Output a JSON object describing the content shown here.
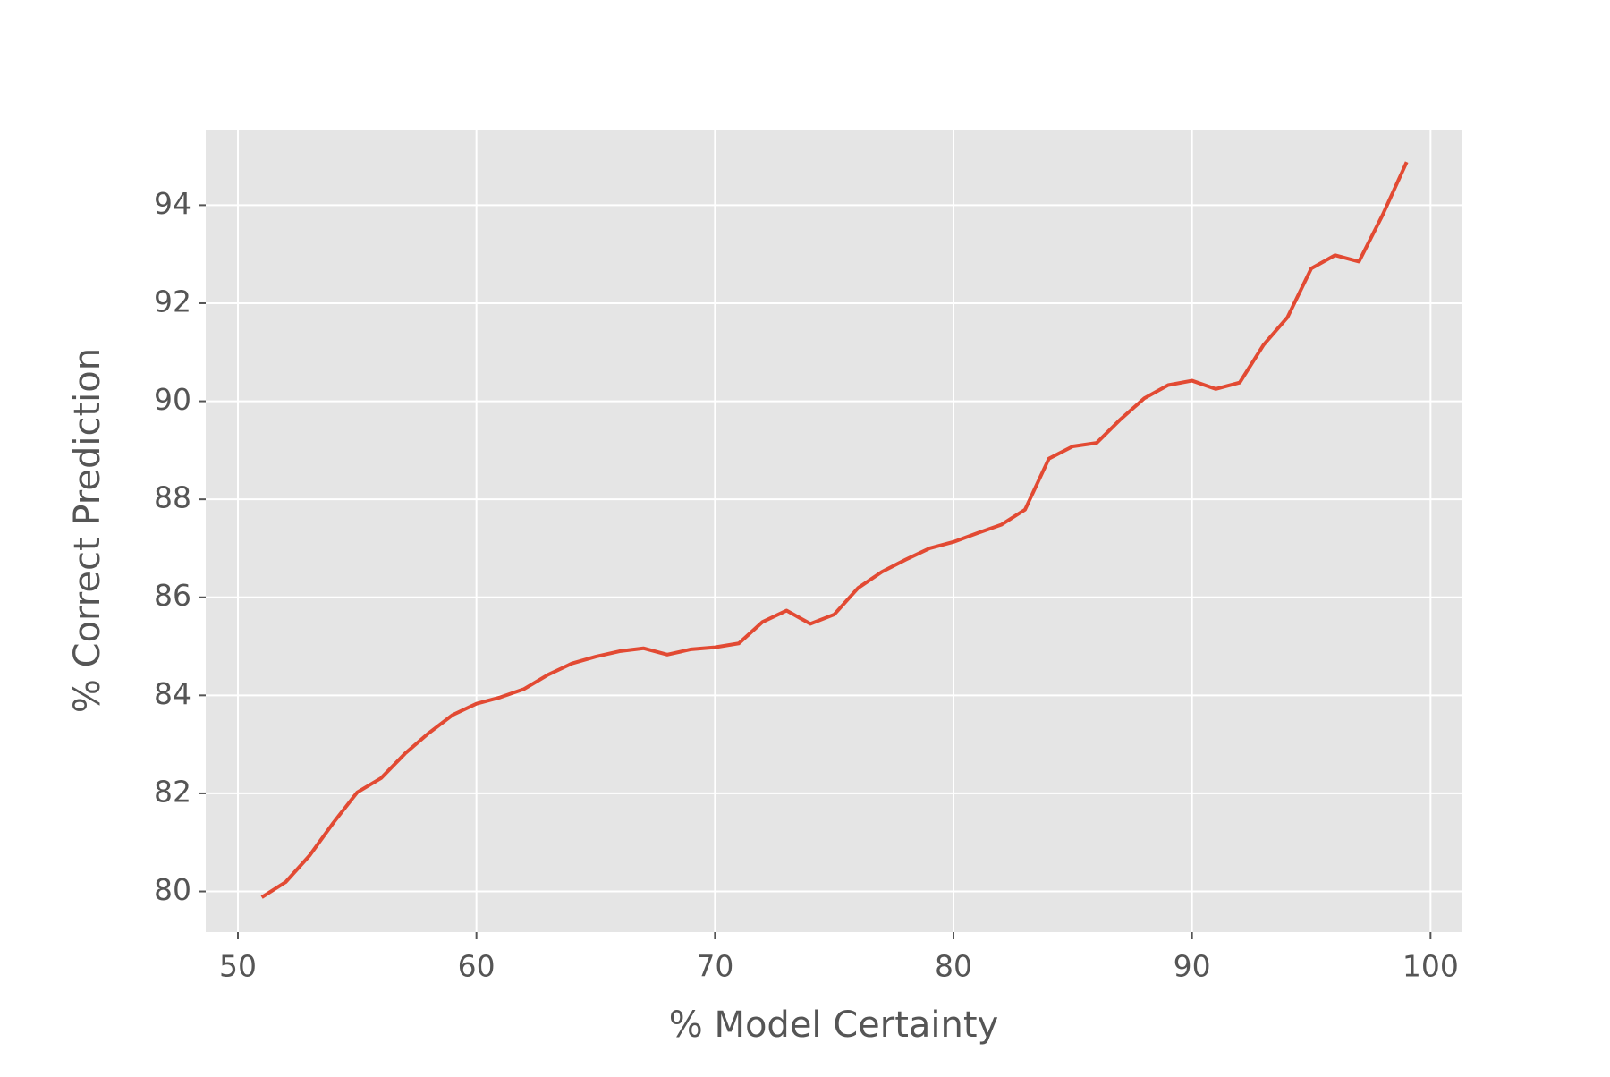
{
  "chart_data": {
    "type": "line",
    "xlabel": "% Model Certainty",
    "ylabel": "% Correct Prediction",
    "x": [
      51,
      52,
      53,
      54,
      55,
      56,
      57,
      58,
      59,
      60,
      61,
      62,
      63,
      64,
      65,
      66,
      67,
      68,
      69,
      70,
      71,
      72,
      73,
      74,
      75,
      76,
      77,
      78,
      79,
      80,
      81,
      82,
      83,
      84,
      85,
      86,
      87,
      88,
      89,
      90,
      91,
      92,
      93,
      94,
      95,
      96,
      97,
      98,
      99
    ],
    "series": [
      {
        "color": "#e24a33",
        "values": [
          79.88,
          80.19,
          80.73,
          81.4,
          82.02,
          82.31,
          82.81,
          83.23,
          83.6,
          83.83,
          83.96,
          84.13,
          84.42,
          84.65,
          84.79,
          84.9,
          84.96,
          84.83,
          84.94,
          84.98,
          85.06,
          85.5,
          85.73,
          85.46,
          85.65,
          86.19,
          86.52,
          86.77,
          87.0,
          87.13,
          87.31,
          87.48,
          87.79,
          88.83,
          89.08,
          89.15,
          89.63,
          90.06,
          90.33,
          90.42,
          90.25,
          90.38,
          91.15,
          91.71,
          92.71,
          92.98,
          92.85,
          93.81,
          94.88
        ]
      }
    ],
    "xlim": [
      48.65,
      101.3
    ],
    "xticks": [
      50,
      60,
      70,
      80,
      90,
      100
    ],
    "ylim": [
      79.17,
      95.54
    ],
    "yticks": [
      80,
      82,
      84,
      86,
      88,
      90,
      92,
      94
    ],
    "grid": true,
    "background": "#e5e5e5"
  }
}
